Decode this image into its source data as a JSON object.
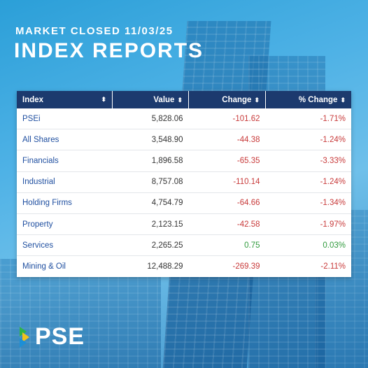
{
  "header": {
    "subtitle": "MARKET CLOSED 11/03/25",
    "title": "INDEX REPORTS"
  },
  "table": {
    "columns": [
      "Index",
      "Value",
      "Change",
      "% Change"
    ],
    "rows": [
      {
        "index": "PSEi",
        "value": "5,828.06",
        "change": "-101.62",
        "pct": "-1.71%"
      },
      {
        "index": "All Shares",
        "value": "3,548.90",
        "change": "-44.38",
        "pct": "-1.24%"
      },
      {
        "index": "Financials",
        "value": "1,896.58",
        "change": "-65.35",
        "pct": "-3.33%"
      },
      {
        "index": "Industrial",
        "value": "8,757.08",
        "change": "-110.14",
        "pct": "-1.24%"
      },
      {
        "index": "Holding Firms",
        "value": "4,754.79",
        "change": "-64.66",
        "pct": "-1.34%"
      },
      {
        "index": "Property",
        "value": "2,123.15",
        "change": "-42.58",
        "pct": "-1.97%"
      },
      {
        "index": "Services",
        "value": "2,265.25",
        "change": "0.75",
        "pct": "0.03%"
      },
      {
        "index": "Mining & Oil",
        "value": "12,488.29",
        "change": "-269.39",
        "pct": "-2.11%"
      }
    ]
  },
  "logo": {
    "text": "PSE",
    "mark_colors": [
      "#2fb34a",
      "#f3c21b",
      "#1d8fd6"
    ]
  },
  "colors": {
    "header_bg": "#1c3a6e",
    "negative": "#c83a3a",
    "positive": "#2f9a3c",
    "index_name": "#1f4fa0"
  }
}
